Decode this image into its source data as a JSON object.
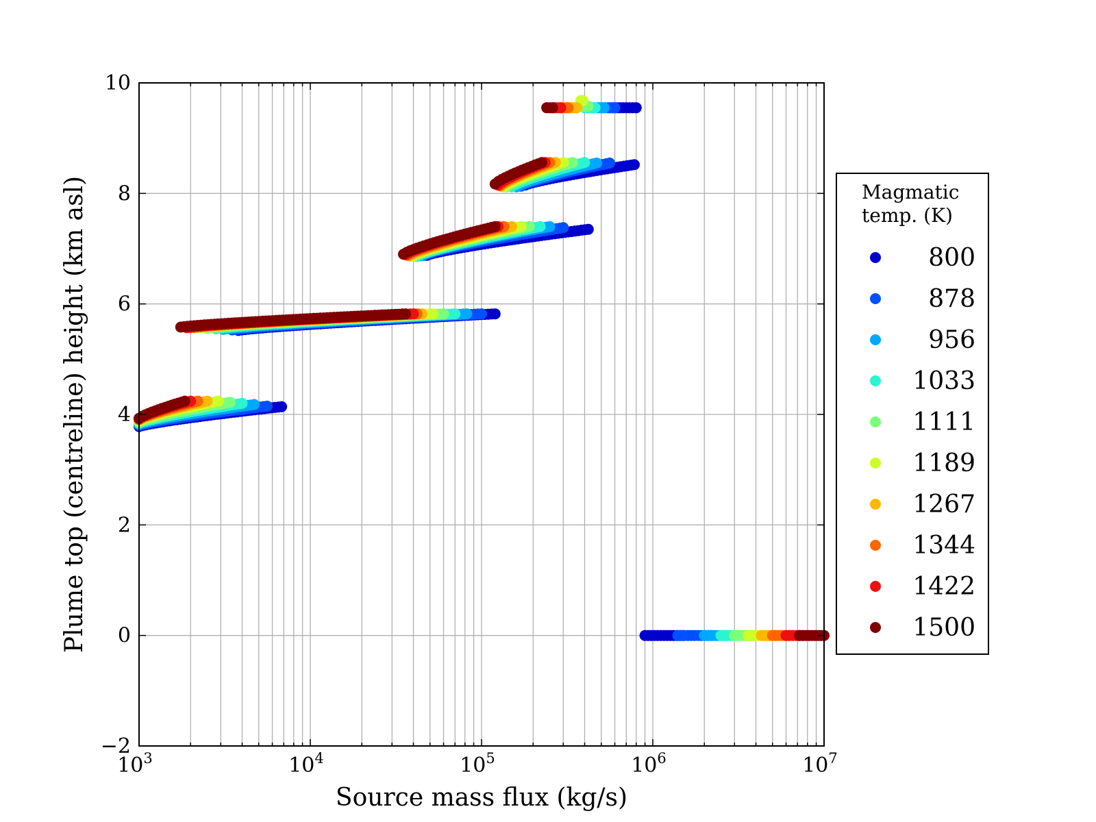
{
  "chart_data": {
    "type": "scatter",
    "xscale": "log",
    "xlim": [
      1000,
      10000000
    ],
    "ylim": [
      -2,
      10
    ],
    "xlabel": "Source mass flux (kg/s)",
    "ylabel": "Plume top (centreline) height (km asl)",
    "yticks": [
      -2,
      0,
      2,
      4,
      6,
      8,
      10
    ],
    "ytick_labels": [
      "−2",
      "0",
      "2",
      "4",
      "6",
      "8",
      "10"
    ],
    "xticks": [
      1000,
      10000,
      100000,
      1000000,
      10000000
    ],
    "xtick_bases": [
      "10",
      "10",
      "10",
      "10",
      "10"
    ],
    "xtick_exps": [
      "3",
      "4",
      "5",
      "6",
      "7"
    ],
    "grid": true,
    "legend": {
      "title_line1": "Magmatic",
      "title_line2": "temp. (K)",
      "placement": "outside-right"
    },
    "series": [
      {
        "name": "800",
        "color": "#0000cc",
        "bands": [
          {
            "x0": 1000,
            "x1": 6800,
            "y0": 3.78,
            "y1": 4.14
          },
          {
            "x0": 3800,
            "x1": 120000,
            "y0": 5.52,
            "y1": 5.82
          },
          {
            "x0": 48000,
            "x1": 420000,
            "y0": 6.88,
            "y1": 7.35
          },
          {
            "x0": 180000,
            "x1": 780000,
            "y0": 8.15,
            "y1": 8.52
          },
          {
            "x0": 560000,
            "x1": 800000,
            "y0": 9.55,
            "y1": 9.55
          },
          {
            "x0": 900000,
            "x1": 1500000,
            "y0": 0,
            "y1": 0
          }
        ]
      },
      {
        "name": "878",
        "color": "#0050ff",
        "bands": [
          {
            "x0": 1000,
            "x1": 5600,
            "y0": 3.8,
            "y1": 4.15
          },
          {
            "x0": 3500,
            "x1": 100000,
            "y0": 5.53,
            "y1": 5.82
          },
          {
            "x0": 46000,
            "x1": 300000,
            "y0": 6.88,
            "y1": 7.38
          },
          {
            "x0": 170000,
            "x1": 560000,
            "y0": 8.13,
            "y1": 8.55
          },
          {
            "x0": 480000,
            "x1": 600000,
            "y0": 9.55,
            "y1": 9.55
          },
          {
            "x0": 1400000,
            "x1": 2200000,
            "y0": 0,
            "y1": 0
          }
        ]
      },
      {
        "name": "956",
        "color": "#00a8ff",
        "bands": [
          {
            "x0": 1000,
            "x1": 4700,
            "y0": 3.82,
            "y1": 4.18
          },
          {
            "x0": 3100,
            "x1": 82000,
            "y0": 5.54,
            "y1": 5.82
          },
          {
            "x0": 44000,
            "x1": 250000,
            "y0": 6.87,
            "y1": 7.4
          },
          {
            "x0": 160000,
            "x1": 470000,
            "y0": 8.12,
            "y1": 8.55
          },
          {
            "x0": 440000,
            "x1": 520000,
            "y0": 9.55,
            "y1": 9.55
          },
          {
            "x0": 2000000,
            "x1": 2700000,
            "y0": 0,
            "y1": 0
          }
        ]
      },
      {
        "name": "1033",
        "color": "#2af5d0",
        "bands": [
          {
            "x0": 1000,
            "x1": 4000,
            "y0": 3.84,
            "y1": 4.2
          },
          {
            "x0": 2800,
            "x1": 70000,
            "y0": 5.55,
            "y1": 5.82
          },
          {
            "x0": 42000,
            "x1": 220000,
            "y0": 6.86,
            "y1": 7.4
          },
          {
            "x0": 150000,
            "x1": 400000,
            "y0": 8.12,
            "y1": 8.56
          },
          {
            "x0": 400000,
            "x1": 460000,
            "y0": 9.55,
            "y1": 9.55
          },
          {
            "x0": 2500000,
            "x1": 3200000,
            "y0": 0,
            "y1": 0
          }
        ]
      },
      {
        "name": "1111",
        "color": "#7bff7b",
        "bands": [
          {
            "x0": 1000,
            "x1": 3400,
            "y0": 3.86,
            "y1": 4.22
          },
          {
            "x0": 2500,
            "x1": 60000,
            "y0": 5.56,
            "y1": 5.82
          },
          {
            "x0": 40000,
            "x1": 190000,
            "y0": 6.86,
            "y1": 7.4
          },
          {
            "x0": 140000,
            "x1": 340000,
            "y0": 8.12,
            "y1": 8.56
          },
          {
            "x0": 370000,
            "x1": 420000,
            "y0": 9.58,
            "y1": 9.58
          },
          {
            "x0": 3000000,
            "x1": 3900000,
            "y0": 0,
            "y1": 0
          }
        ]
      },
      {
        "name": "1189",
        "color": "#ccff2a",
        "bands": [
          {
            "x0": 1000,
            "x1": 2900,
            "y0": 3.88,
            "y1": 4.24
          },
          {
            "x0": 2300,
            "x1": 52000,
            "y0": 5.57,
            "y1": 5.82
          },
          {
            "x0": 39000,
            "x1": 170000,
            "y0": 6.86,
            "y1": 7.4
          },
          {
            "x0": 135000,
            "x1": 300000,
            "y0": 8.12,
            "y1": 8.56
          },
          {
            "x0": 380000,
            "x1": 390000,
            "y0": 9.68,
            "y1": 9.68
          },
          {
            "x0": 3600000,
            "x1": 4500000,
            "y0": 0,
            "y1": 0
          }
        ]
      },
      {
        "name": "1267",
        "color": "#ffb800",
        "bands": [
          {
            "x0": 1000,
            "x1": 2500,
            "y0": 3.9,
            "y1": 4.24
          },
          {
            "x0": 2100,
            "x1": 45000,
            "y0": 5.57,
            "y1": 5.82
          },
          {
            "x0": 38000,
            "x1": 150000,
            "y0": 6.87,
            "y1": 7.4
          },
          {
            "x0": 130000,
            "x1": 270000,
            "y0": 8.13,
            "y1": 8.56
          },
          {
            "x0": 320000,
            "x1": 360000,
            "y0": 9.55,
            "y1": 9.55
          },
          {
            "x0": 4300000,
            "x1": 5200000,
            "y0": 0,
            "y1": 0
          }
        ]
      },
      {
        "name": "1344",
        "color": "#ff6600",
        "bands": [
          {
            "x0": 1000,
            "x1": 2200,
            "y0": 3.91,
            "y1": 4.24
          },
          {
            "x0": 2000,
            "x1": 42000,
            "y0": 5.57,
            "y1": 5.82
          },
          {
            "x0": 37000,
            "x1": 135000,
            "y0": 6.88,
            "y1": 7.4
          },
          {
            "x0": 128000,
            "x1": 250000,
            "y0": 8.14,
            "y1": 8.56
          },
          {
            "x0": 290000,
            "x1": 320000,
            "y0": 9.55,
            "y1": 9.55
          },
          {
            "x0": 5000000,
            "x1": 6200000,
            "y0": 0,
            "y1": 0
          }
        ]
      },
      {
        "name": "1422",
        "color": "#ee1010",
        "bands": [
          {
            "x0": 1000,
            "x1": 2000,
            "y0": 3.92,
            "y1": 4.24
          },
          {
            "x0": 1900,
            "x1": 40000,
            "y0": 5.57,
            "y1": 5.82
          },
          {
            "x0": 36000,
            "x1": 125000,
            "y0": 6.89,
            "y1": 7.4
          },
          {
            "x0": 125000,
            "x1": 235000,
            "y0": 8.15,
            "y1": 8.56
          },
          {
            "x0": 260000,
            "x1": 290000,
            "y0": 9.55,
            "y1": 9.55
          },
          {
            "x0": 6000000,
            "x1": 7500000,
            "y0": 0,
            "y1": 0
          }
        ]
      },
      {
        "name": "1500",
        "color": "#800000",
        "bands": [
          {
            "x0": 1000,
            "x1": 1850,
            "y0": 3.93,
            "y1": 4.24
          },
          {
            "x0": 1750,
            "x1": 36000,
            "y0": 5.58,
            "y1": 5.82
          },
          {
            "x0": 35000,
            "x1": 120000,
            "y0": 6.9,
            "y1": 7.4
          },
          {
            "x0": 120000,
            "x1": 225000,
            "y0": 8.17,
            "y1": 8.56
          },
          {
            "x0": 240000,
            "x1": 260000,
            "y0": 9.55,
            "y1": 9.55
          },
          {
            "x0": 7200000,
            "x1": 10000000,
            "y0": 0,
            "y1": 0
          }
        ]
      }
    ]
  }
}
